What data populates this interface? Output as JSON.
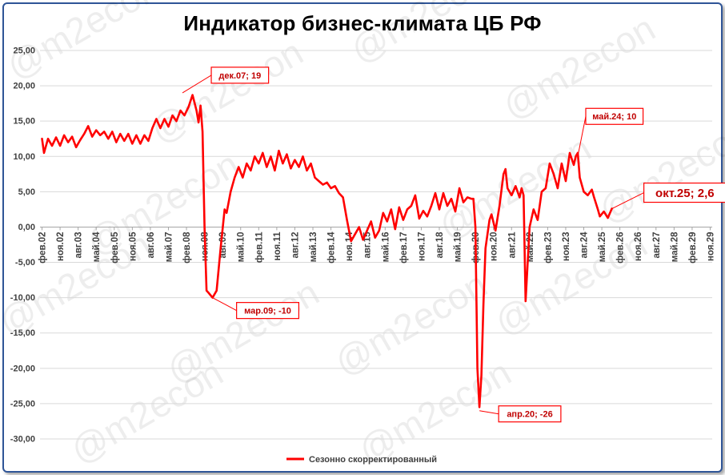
{
  "chart_data": {
    "type": "line",
    "title": "Индикатор бизнес-климата ЦБ РФ",
    "watermark": "@m2econ",
    "ylim": [
      -30,
      25
    ],
    "y_ticks": [
      "25,00",
      "20,00",
      "15,00",
      "10,00",
      "5,00",
      "0,00",
      "-5,00",
      "-10,00",
      "-15,00",
      "-20,00",
      "-25,00",
      "-30,00"
    ],
    "x_tick_labels": [
      "фев.02",
      "ноя.02",
      "авг.03",
      "май.04",
      "фев.05",
      "ноя.05",
      "авг.06",
      "май.07",
      "фев.08",
      "ноя.08",
      "авг.09",
      "май.10",
      "фев.11",
      "ноя.11",
      "авг.12",
      "май.13",
      "фев.14",
      "ноя.14",
      "авг.15",
      "май.16",
      "фев.17",
      "ноя.17",
      "авг.18",
      "май.19",
      "фев.20",
      "ноя.20",
      "авг.21",
      "май.22",
      "фев.23",
      "ноя.23",
      "авг.24",
      "май.25",
      "фев.26",
      "ноя.26",
      "авг.27",
      "май.28",
      "фев.29",
      "ноя.29"
    ],
    "x_start": "2002-02",
    "x_end": "2029-11",
    "grid": true,
    "legend": "bottom-center",
    "series": [
      {
        "name": "Сезонно скорректированный",
        "color": "#ff0000",
        "points": [
          [
            "2002-02",
            12.5
          ],
          [
            "2002-03",
            10.5
          ],
          [
            "2002-05",
            12.5
          ],
          [
            "2002-07",
            11.5
          ],
          [
            "2002-09",
            12.7
          ],
          [
            "2002-11",
            11.5
          ],
          [
            "2003-01",
            13
          ],
          [
            "2003-03",
            12
          ],
          [
            "2003-05",
            12.8
          ],
          [
            "2003-07",
            11.3
          ],
          [
            "2003-09",
            12.3
          ],
          [
            "2003-11",
            13.2
          ],
          [
            "2004-01",
            14.3
          ],
          [
            "2004-03",
            12.8
          ],
          [
            "2004-05",
            13.7
          ],
          [
            "2004-07",
            13
          ],
          [
            "2004-09",
            13.5
          ],
          [
            "2004-11",
            12.5
          ],
          [
            "2005-01",
            13.5
          ],
          [
            "2005-03",
            12
          ],
          [
            "2005-05",
            13.2
          ],
          [
            "2005-07",
            12.2
          ],
          [
            "2005-09",
            13.2
          ],
          [
            "2005-11",
            11.8
          ],
          [
            "2006-01",
            13
          ],
          [
            "2006-03",
            11.8
          ],
          [
            "2006-05",
            13
          ],
          [
            "2006-07",
            12.2
          ],
          [
            "2006-09",
            14
          ],
          [
            "2006-11",
            15.3
          ],
          [
            "2007-01",
            14
          ],
          [
            "2007-03",
            15.3
          ],
          [
            "2007-05",
            14.2
          ],
          [
            "2007-07",
            15.8
          ],
          [
            "2007-09",
            15
          ],
          [
            "2007-11",
            16.5
          ],
          [
            "2008-01",
            15.8
          ],
          [
            "2008-03",
            17
          ],
          [
            "2008-05",
            18.7
          ],
          [
            "2008-07",
            16.5
          ],
          [
            "2008-08",
            14.8
          ],
          [
            "2008-09",
            17.2
          ],
          [
            "2008-10",
            13.5
          ],
          [
            "2008-11",
            0
          ],
          [
            "2008-12",
            -9
          ],
          [
            "2009-01",
            -9.3
          ],
          [
            "2009-03",
            -10
          ],
          [
            "2009-05",
            -9
          ],
          [
            "2009-07",
            -3
          ],
          [
            "2009-09",
            2.5
          ],
          [
            "2009-10",
            2
          ],
          [
            "2009-12",
            5
          ],
          [
            "2010-02",
            7
          ],
          [
            "2010-04",
            8.5
          ],
          [
            "2010-06",
            7
          ],
          [
            "2010-08",
            9
          ],
          [
            "2010-10",
            8
          ],
          [
            "2010-12",
            10
          ],
          [
            "2011-02",
            9
          ],
          [
            "2011-04",
            10.5
          ],
          [
            "2011-06",
            8.5
          ],
          [
            "2011-08",
            10
          ],
          [
            "2011-10",
            8
          ],
          [
            "2011-12",
            10.8
          ],
          [
            "2012-02",
            9
          ],
          [
            "2012-04",
            10.3
          ],
          [
            "2012-06",
            8.3
          ],
          [
            "2012-08",
            9.5
          ],
          [
            "2012-10",
            8.5
          ],
          [
            "2012-12",
            10
          ],
          [
            "2013-02",
            8
          ],
          [
            "2013-04",
            9
          ],
          [
            "2013-06",
            7
          ],
          [
            "2013-08",
            6.5
          ],
          [
            "2013-10",
            6
          ],
          [
            "2013-12",
            6.3
          ],
          [
            "2014-02",
            5.5
          ],
          [
            "2014-04",
            5.8
          ],
          [
            "2014-06",
            4.8
          ],
          [
            "2014-08",
            4.2
          ],
          [
            "2014-10",
            1
          ],
          [
            "2014-12",
            -2
          ],
          [
            "2015-02",
            -1
          ],
          [
            "2015-04",
            0
          ],
          [
            "2015-06",
            -1.8
          ],
          [
            "2015-08",
            -0.5
          ],
          [
            "2015-10",
            0.8
          ],
          [
            "2015-12",
            -1.5
          ],
          [
            "2016-02",
            -0.5
          ],
          [
            "2016-04",
            2
          ],
          [
            "2016-06",
            0.8
          ],
          [
            "2016-08",
            2.5
          ],
          [
            "2016-10",
            -0.3
          ],
          [
            "2016-12",
            2.8
          ],
          [
            "2017-02",
            1
          ],
          [
            "2017-04",
            2.5
          ],
          [
            "2017-06",
            3
          ],
          [
            "2017-08",
            4.5
          ],
          [
            "2017-10",
            1.2
          ],
          [
            "2017-12",
            2.3
          ],
          [
            "2018-02",
            1.5
          ],
          [
            "2018-04",
            3
          ],
          [
            "2018-06",
            4.8
          ],
          [
            "2018-08",
            2.5
          ],
          [
            "2018-10",
            4.8
          ],
          [
            "2018-12",
            3
          ],
          [
            "2019-02",
            4
          ],
          [
            "2019-04",
            2.2
          ],
          [
            "2019-06",
            5.5
          ],
          [
            "2019-08",
            3.5
          ],
          [
            "2019-10",
            4.2
          ],
          [
            "2019-12",
            4
          ],
          [
            "2020-01",
            4
          ],
          [
            "2020-02",
            0
          ],
          [
            "2020-03",
            -20
          ],
          [
            "2020-04",
            -25.5
          ],
          [
            "2020-05",
            -21
          ],
          [
            "2020-06",
            -11
          ],
          [
            "2020-07",
            -3
          ],
          [
            "2020-09",
            1
          ],
          [
            "2020-10",
            1.8
          ],
          [
            "2020-12",
            -0.5
          ],
          [
            "2021-02",
            3
          ],
          [
            "2021-04",
            7.5
          ],
          [
            "2021-05",
            8.2
          ],
          [
            "2021-06",
            5.5
          ],
          [
            "2021-08",
            4.5
          ],
          [
            "2021-10",
            5.8
          ],
          [
            "2021-12",
            4.2
          ],
          [
            "2022-01",
            5.5
          ],
          [
            "2022-02",
            4.5
          ],
          [
            "2022-03",
            -10.5
          ],
          [
            "2022-05",
            0
          ],
          [
            "2022-07",
            2.5
          ],
          [
            "2022-09",
            1
          ],
          [
            "2022-11",
            5
          ],
          [
            "2023-01",
            5.5
          ],
          [
            "2023-03",
            9
          ],
          [
            "2023-05",
            7.5
          ],
          [
            "2023-07",
            5.5
          ],
          [
            "2023-09",
            9
          ],
          [
            "2023-11",
            6.5
          ],
          [
            "2024-01",
            10.5
          ],
          [
            "2024-03",
            8.8
          ],
          [
            "2024-04",
            10
          ],
          [
            "2024-05",
            10.5
          ],
          [
            "2024-06",
            7
          ],
          [
            "2024-08",
            5
          ],
          [
            "2024-10",
            4.5
          ],
          [
            "2024-12",
            5.3
          ],
          [
            "2025-01",
            4.3
          ],
          [
            "2025-03",
            2.5
          ],
          [
            "2025-04",
            1.5
          ],
          [
            "2025-06",
            2.2
          ],
          [
            "2025-08",
            1.3
          ],
          [
            "2025-10",
            2.6
          ]
        ]
      }
    ],
    "annotations": [
      {
        "label": "дек.07; 19",
        "x": "2007-12",
        "y": 19
      },
      {
        "label": "мар.09; -10",
        "x": "2009-03",
        "y": -10
      },
      {
        "label": "апр.20; -26",
        "x": "2020-04",
        "y": -26
      },
      {
        "label": "май.24; 10",
        "x": "2024-05",
        "y": 10
      },
      {
        "label": "окт.25; 2,6",
        "x": "2025-10",
        "y": 2.6
      }
    ]
  }
}
